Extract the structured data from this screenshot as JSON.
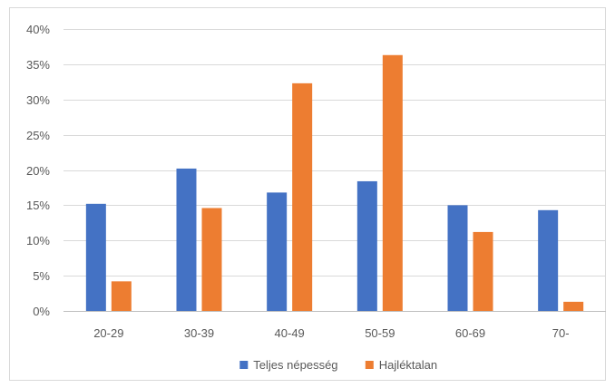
{
  "chart_data": {
    "type": "bar",
    "title": "",
    "xlabel": "",
    "ylabel": "",
    "categories": [
      "20-29",
      "30-39",
      "40-49",
      "50-59",
      "60-69",
      "70-"
    ],
    "series": [
      {
        "name": "Teljes népesség",
        "color": "#4472c4",
        "values": [
          15.2,
          20.2,
          16.8,
          18.4,
          15.0,
          14.3
        ]
      },
      {
        "name": "Hajléktalan",
        "color": "#ed7d31",
        "values": [
          4.2,
          14.6,
          32.3,
          36.3,
          11.2,
          1.3
        ]
      }
    ],
    "ylim": [
      0,
      40
    ],
    "yticks": [
      "0%",
      "5%",
      "10%",
      "15%",
      "20%",
      "25%",
      "30%",
      "35%",
      "40%"
    ],
    "grid": true,
    "legend_position": "bottom"
  }
}
